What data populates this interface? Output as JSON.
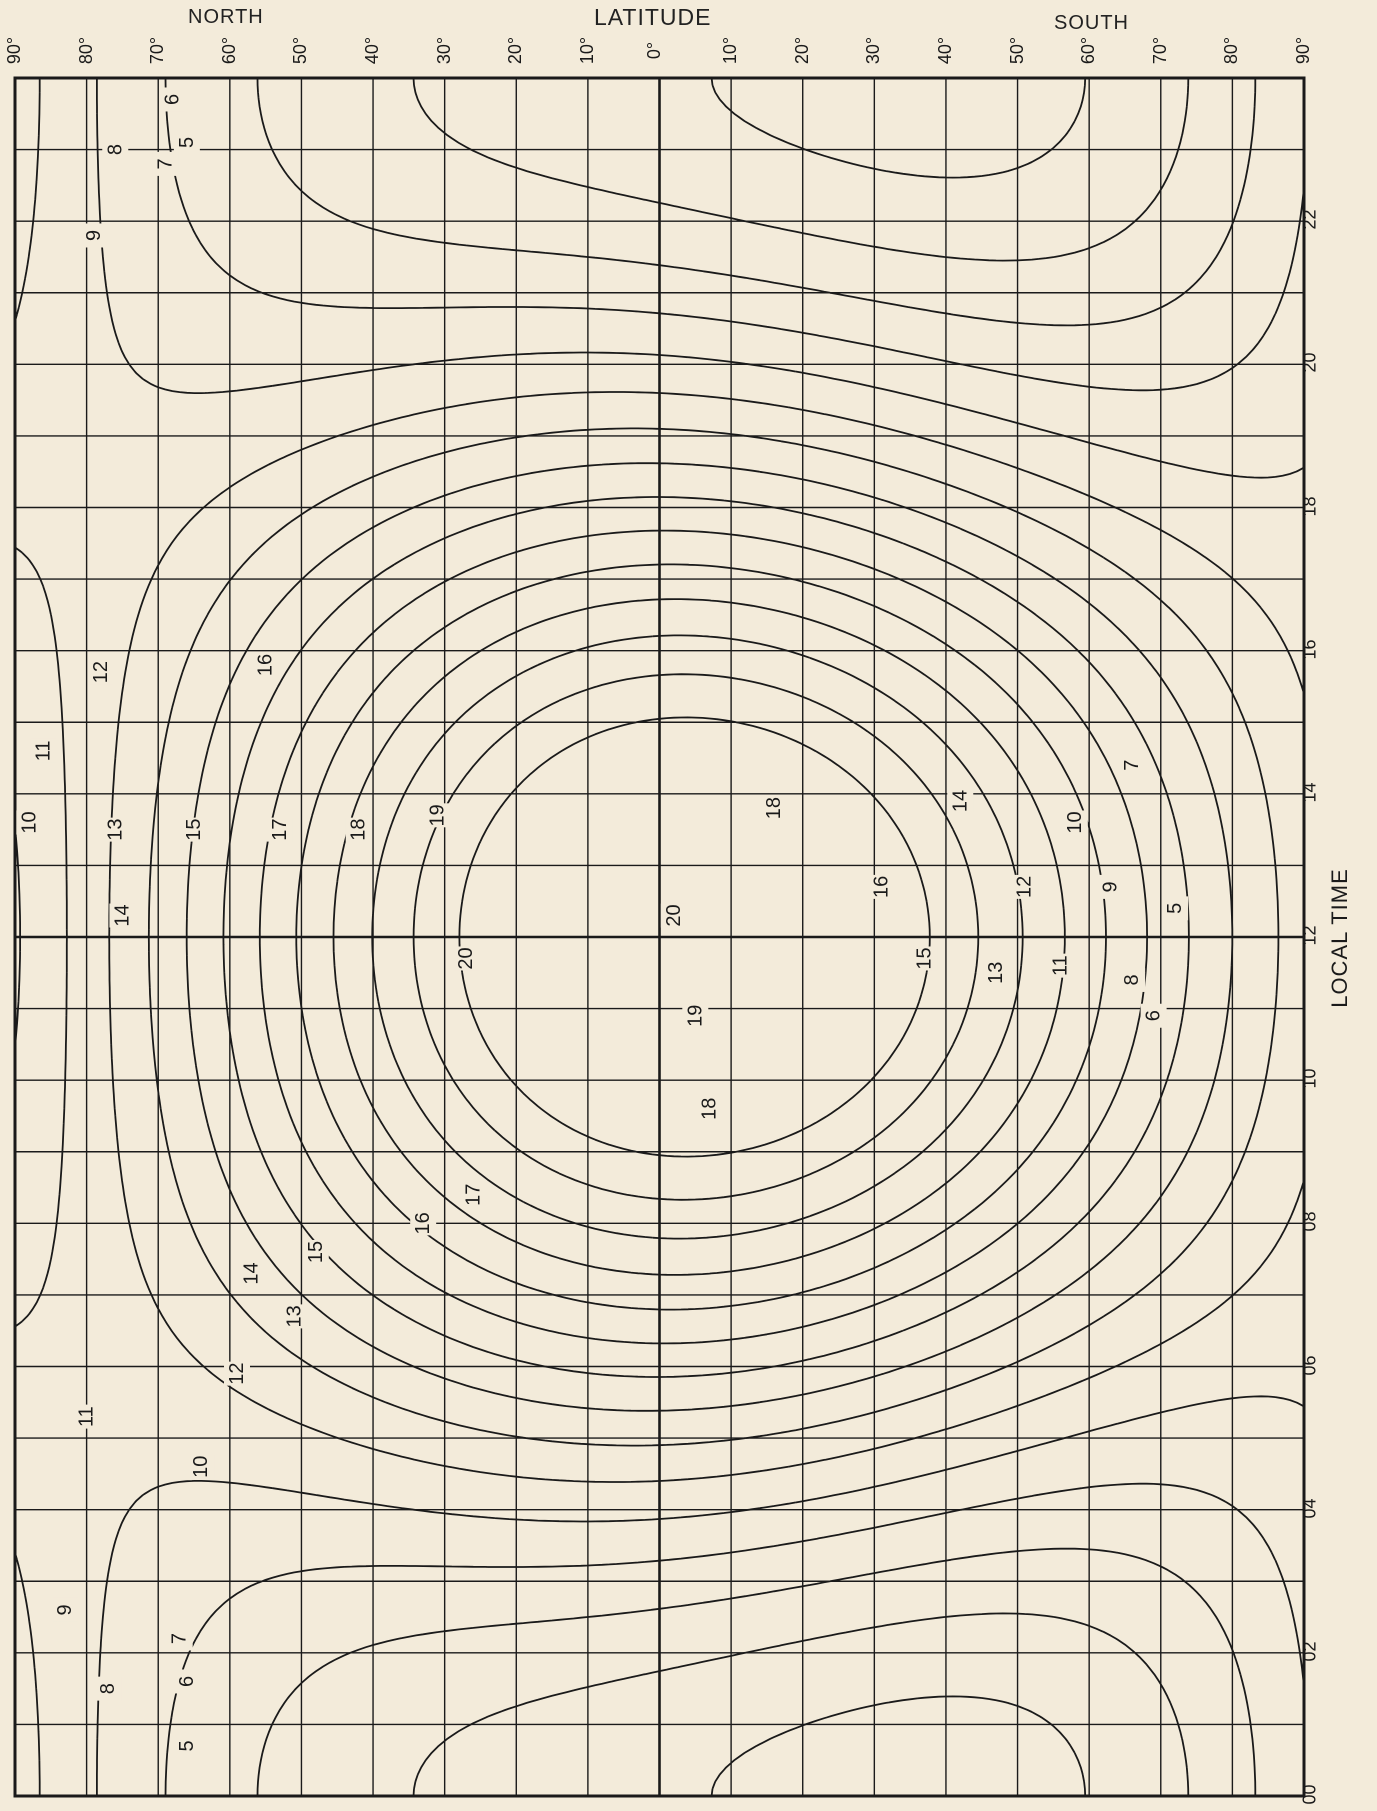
{
  "header": {
    "north": "NORTH",
    "latitude": "LATITUDE",
    "south": "SOUTH"
  },
  "y_axis_label": "LOCAL TIME",
  "colors": {
    "background": "#f3ebda",
    "ink": "#1a1a1a"
  },
  "chart_data": {
    "type": "contour",
    "xlabel": "LATITUDE",
    "ylabel": "LOCAL TIME",
    "x_tick_labels": [
      "90°",
      "80°",
      "70°",
      "60°",
      "50°",
      "40°",
      "30°",
      "20°",
      "10°",
      "0°",
      "10°",
      "20°",
      "30°",
      "40°",
      "50°",
      "60°",
      "70°",
      "80°",
      "90°"
    ],
    "x_ticks": [
      -90,
      -80,
      -70,
      -60,
      -50,
      -40,
      -30,
      -20,
      -10,
      0,
      10,
      20,
      30,
      40,
      50,
      60,
      70,
      80,
      90
    ],
    "x_range": [
      -90,
      90
    ],
    "y_tick_labels": [
      "00",
      "02",
      "04",
      "06",
      "08",
      "10",
      "12",
      "14",
      "16",
      "18",
      "20",
      "22"
    ],
    "y_ticks": [
      0,
      2,
      4,
      6,
      8,
      10,
      12,
      14,
      16,
      18,
      20,
      22
    ],
    "y_range": [
      0,
      24
    ],
    "grid": true,
    "contour_levels": [
      5,
      6,
      7,
      8,
      9,
      10,
      11,
      12,
      13,
      14,
      15,
      16,
      17,
      18,
      19,
      20
    ],
    "contour_labels": [
      {
        "text": "5",
        "lat": 66,
        "time": 0.7
      },
      {
        "text": "6",
        "lat": 66,
        "time": 1.6
      },
      {
        "text": "7",
        "lat": 67,
        "time": 2.2
      },
      {
        "text": "8",
        "lat": 77,
        "time": 1.5
      },
      {
        "text": "9",
        "lat": 83,
        "time": 2.6
      },
      {
        "text": "10",
        "lat": 64,
        "time": 4.6
      },
      {
        "text": "11",
        "lat": 80,
        "time": 5.3
      },
      {
        "text": "12",
        "lat": 59,
        "time": 5.9
      },
      {
        "text": "13",
        "lat": 51,
        "time": 6.7
      },
      {
        "text": "14",
        "lat": 57,
        "time": 7.3
      },
      {
        "text": "15",
        "lat": 48,
        "time": 7.6
      },
      {
        "text": "16",
        "lat": 33,
        "time": 8.0
      },
      {
        "text": "17",
        "lat": 26,
        "time": 8.4
      },
      {
        "text": "18",
        "lat": -7,
        "time": 9.6
      },
      {
        "text": "19",
        "lat": -5,
        "time": 10.9
      },
      {
        "text": "20",
        "lat": 27,
        "time": 11.7
      },
      {
        "text": "20",
        "lat": -2,
        "time": 12.3
      },
      {
        "text": "19",
        "lat": 31,
        "time": 13.7
      },
      {
        "text": "18",
        "lat": -16,
        "time": 13.8
      },
      {
        "text": "18",
        "lat": 42,
        "time": 13.5
      },
      {
        "text": "17",
        "lat": 53,
        "time": 13.5
      },
      {
        "text": "16",
        "lat": -31,
        "time": 12.7
      },
      {
        "text": "15",
        "lat": -37,
        "time": 11.7
      },
      {
        "text": "14",
        "lat": -42,
        "time": 13.9
      },
      {
        "text": "13",
        "lat": -47,
        "time": 11.5
      },
      {
        "text": "12",
        "lat": -51,
        "time": 12.7
      },
      {
        "text": "11",
        "lat": -56,
        "time": 11.6
      },
      {
        "text": "10",
        "lat": -58,
        "time": 13.6
      },
      {
        "text": "9",
        "lat": -63,
        "time": 12.7
      },
      {
        "text": "8",
        "lat": -66,
        "time": 11.4
      },
      {
        "text": "7",
        "lat": -66,
        "time": 14.4
      },
      {
        "text": "6",
        "lat": -69,
        "time": 10.9
      },
      {
        "text": "5",
        "lat": -72,
        "time": 12.4
      },
      {
        "text": "16",
        "lat": 55,
        "time": 15.8
      },
      {
        "text": "15",
        "lat": 65,
        "time": 13.5
      },
      {
        "text": "14",
        "lat": 75,
        "time": 12.3
      },
      {
        "text": "13",
        "lat": 76,
        "time": 13.5
      },
      {
        "text": "12",
        "lat": 78,
        "time": 15.7
      },
      {
        "text": "11",
        "lat": 86,
        "time": 14.6
      },
      {
        "text": "10",
        "lat": 88,
        "time": 13.6
      },
      {
        "text": "5",
        "lat": 66,
        "time": 23.1
      },
      {
        "text": "6",
        "lat": 68,
        "time": 23.7
      },
      {
        "text": "7",
        "lat": 69,
        "time": 22.8
      },
      {
        "text": "8",
        "lat": 76,
        "time": 23.0
      },
      {
        "text": "9",
        "lat": 79,
        "time": 21.8
      }
    ]
  }
}
